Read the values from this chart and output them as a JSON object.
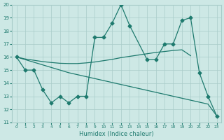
{
  "xlabel": "Humidex (Indice chaleur)",
  "ylim": [
    11,
    20
  ],
  "xlim": [
    -0.5,
    23.5
  ],
  "yticks": [
    11,
    12,
    13,
    14,
    15,
    16,
    17,
    18,
    19,
    20
  ],
  "xticks": [
    0,
    1,
    2,
    3,
    4,
    5,
    6,
    7,
    8,
    9,
    10,
    11,
    12,
    13,
    14,
    15,
    16,
    17,
    18,
    19,
    20,
    21,
    22,
    23
  ],
  "bg_color": "#cde8e5",
  "grid_color": "#a8ccc9",
  "line_color": "#1e7a6e",
  "marker": "D",
  "marker_size": 2.5,
  "zigzag_x": [
    0,
    1,
    2,
    3,
    4,
    5,
    6,
    7,
    8,
    9,
    10,
    11,
    12,
    13,
    15,
    16,
    17,
    18,
    19,
    20,
    21,
    22,
    23
  ],
  "zigzag_y": [
    16,
    15,
    15,
    13.5,
    12.5,
    13,
    12.5,
    13,
    13,
    17.5,
    17.5,
    18.6,
    20,
    18.4,
    15.8,
    15.8,
    17,
    17,
    18.8,
    19,
    14.8,
    13,
    11.5
  ],
  "trend_upper_x": [
    0,
    1,
    2,
    3,
    4,
    5,
    6,
    7,
    8,
    9,
    10,
    11,
    12,
    13,
    14,
    15,
    16,
    17,
    18,
    19,
    20
  ],
  "trend_upper_y": [
    16,
    15.85,
    15.75,
    15.65,
    15.58,
    15.52,
    15.5,
    15.5,
    15.55,
    15.62,
    15.72,
    15.82,
    15.95,
    16.05,
    16.15,
    16.25,
    16.35,
    16.42,
    16.5,
    16.55,
    16.1
  ],
  "trend_lower_x": [
    0,
    1,
    2,
    3,
    4,
    5,
    6,
    7,
    8,
    9,
    10,
    11,
    12,
    13,
    14,
    15,
    16,
    17,
    18,
    19,
    20,
    21,
    22,
    23
  ],
  "trend_lower_y": [
    16,
    15.8,
    15.6,
    15.4,
    15.2,
    15.0,
    14.8,
    14.65,
    14.5,
    14.35,
    14.2,
    14.05,
    13.9,
    13.75,
    13.6,
    13.45,
    13.3,
    13.15,
    13.0,
    12.85,
    12.7,
    12.55,
    12.4,
    11.5
  ]
}
